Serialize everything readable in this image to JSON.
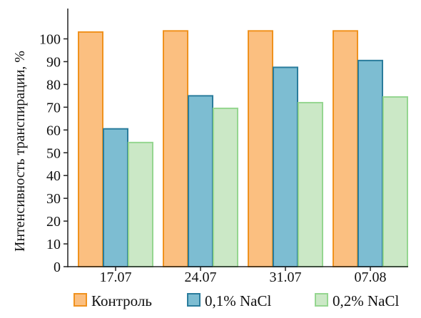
{
  "chart_data": {
    "type": "bar",
    "title": "",
    "xlabel": "",
    "ylabel": "Интенсивность транспирации, %",
    "ylim": [
      0,
      100
    ],
    "yticks": [
      0,
      10,
      20,
      30,
      40,
      50,
      60,
      70,
      80,
      90,
      100
    ],
    "grid": false,
    "legend_position": "bottom",
    "categories": [
      "17.07",
      "24.07",
      "31.07",
      "07.08"
    ],
    "series": [
      {
        "name": "Контроль",
        "values": [
          103,
          103.5,
          103.5,
          103.5
        ],
        "fill": "#fbbf80",
        "stroke": "#f0921e"
      },
      {
        "name": "0,1% NaCl",
        "values": [
          60.5,
          75,
          87.5,
          90.5
        ],
        "fill": "#7dbdd2",
        "stroke": "#2a7c9c"
      },
      {
        "name": "0,2% NaCl",
        "values": [
          54.5,
          69.5,
          72,
          74.5
        ],
        "fill": "#cbe8c6",
        "stroke": "#95d690"
      }
    ]
  }
}
